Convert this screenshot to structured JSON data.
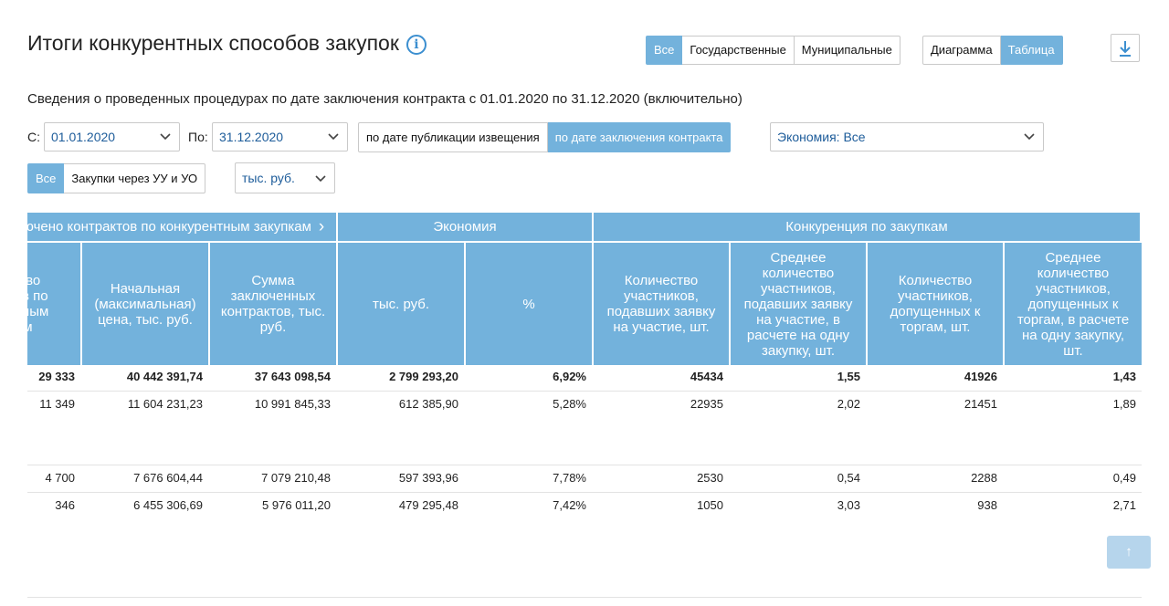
{
  "title": "Итоги конкурентных способов закупок",
  "info_icon_glyph": "i",
  "budget_filter": {
    "options": [
      "Все",
      "Государственные",
      "Муниципальные"
    ],
    "active": 0
  },
  "view_toggle": {
    "options": [
      "Диаграмма",
      "Таблица"
    ],
    "active": 1
  },
  "download_icon": "download-icon",
  "subtitle": "Сведения о проведенных процедурах по дате заключения контракта с 01.01.2020 по 31.12.2020 (включительно)",
  "filters": {
    "from_label": "С:",
    "from_value": "01.01.2020",
    "to_label": "По:",
    "to_value": "31.12.2020",
    "date_mode": {
      "options": [
        "по дате публикации извещения",
        "по дате заключения контракта"
      ],
      "active": 1
    },
    "economy_value": "Экономия: Все",
    "purchase_type": {
      "options": [
        "Все",
        "Закупки через УУ и УО"
      ],
      "active": 0
    },
    "unit_value": "тыс. руб."
  },
  "table": {
    "groups": [
      "Заключено контрактов по конкурентным закупкам",
      "Экономия",
      "Конкуренция по закупкам"
    ],
    "group_more_glyph": "›",
    "columns": [
      "Количество контрактов по конкурентным закупкам",
      "Начальная (максимальная) цена, тыс. руб.",
      "Сумма заключенных контрактов, тыс. руб.",
      "тыс. руб.",
      "%",
      "Количество участников, подавших заявку на участие, шт.",
      "Среднее количество участников, подавших заявку на участие, в расчете на одну закупку, шт.",
      "Количество участников, допущенных к торгам, шт.",
      "Среднее количество участников, допущенных к торгам, в расчете на одну закупку, шт."
    ],
    "rows": [
      [
        "29 333",
        "40 442 391,74",
        "37 643 098,54",
        "2 799 293,20",
        "6,92%",
        "45434",
        "1,55",
        "41926",
        "1,43"
      ],
      [
        "11 349",
        "11 604 231,23",
        "10 991 845,33",
        "612 385,90",
        "5,28%",
        "22935",
        "2,02",
        "21451",
        "1,89"
      ],
      [
        "4 700",
        "7 676 604,44",
        "7 079 210,48",
        "597 393,96",
        "7,78%",
        "2530",
        "0,54",
        "2288",
        "0,49"
      ],
      [
        "346",
        "6 455 306,69",
        "5 976 011,20",
        "479 295,48",
        "7,42%",
        "1050",
        "3,03",
        "938",
        "2,71"
      ]
    ]
  },
  "scroll_up_glyph": "↑",
  "colors": {
    "accent": "#73b2dc",
    "link": "#1d5c9a",
    "icon": "#3c8fd0"
  }
}
